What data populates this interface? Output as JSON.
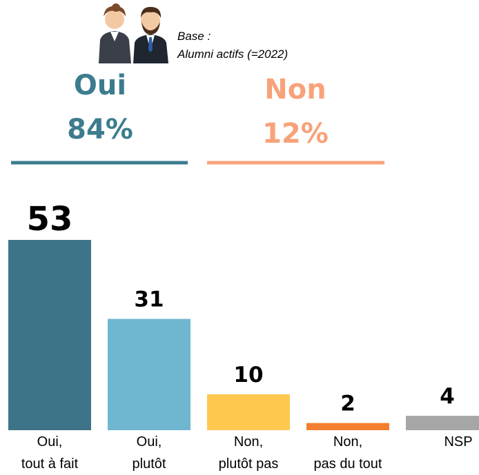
{
  "chart_data": {
    "type": "bar",
    "base": "Base :\nAlumni actifs (=2022)",
    "summary": {
      "labels": [
        "Oui",
        "Non"
      ],
      "values": [
        84,
        12
      ],
      "value_labels": [
        "84%",
        "12%"
      ],
      "colors": [
        "#3d7c8e",
        "#f8a27a"
      ]
    },
    "categories": [
      "Oui,\ntout à fait",
      "Oui,\nplutôt",
      "Non,\nplutôt pas",
      "Non,\npas du tout",
      "NSP"
    ],
    "values": [
      53,
      31,
      10,
      2,
      4
    ],
    "colors": [
      "#3d7487",
      "#6fb6d0",
      "#fec84f",
      "#f47f30",
      "#a6a6a6"
    ],
    "ylim": [
      0,
      53
    ]
  }
}
